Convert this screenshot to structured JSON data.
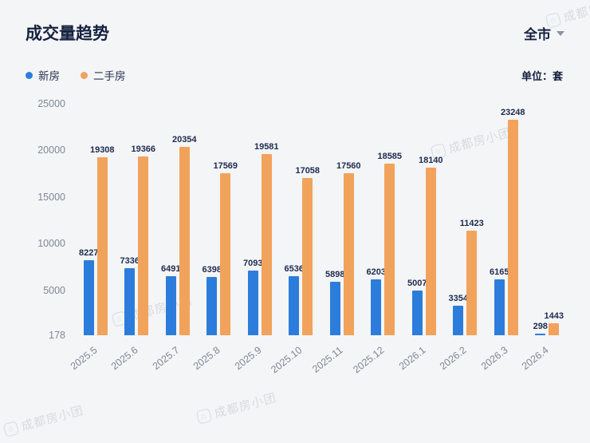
{
  "header": {
    "title": "成交量趋势",
    "scope_label": "全市",
    "unit_label": "单位：套"
  },
  "legend": [
    {
      "label": "新房",
      "color": "#2c7ddb"
    },
    {
      "label": "二手房",
      "color": "#f1a35c"
    }
  ],
  "watermark": {
    "text": "成都房小团"
  },
  "chart_data": {
    "type": "bar",
    "title": "成交量趋势",
    "unit": "套",
    "categories": [
      "2025.5",
      "2025.6",
      "2025.7",
      "2025.8",
      "2025.9",
      "2025.10",
      "2025.11",
      "2025.12",
      "2026.1",
      "2026.2",
      "2026.3",
      "2026.4"
    ],
    "series": [
      {
        "name": "新房",
        "color": "#2c7ddb",
        "values": [
          8227,
          7336,
          6491,
          6398,
          7093,
          6536,
          5898,
          6203,
          5007,
          3354,
          6165,
          298
        ]
      },
      {
        "name": "二手房",
        "color": "#f1a35c",
        "values": [
          19308,
          19366,
          20354,
          17569,
          19581,
          17058,
          17560,
          18585,
          18140,
          11423,
          23248,
          1443
        ]
      }
    ],
    "yticks": [
      178,
      5000,
      10000,
      15000,
      20000,
      25000
    ],
    "ylim": [
      178,
      25000
    ],
    "grid": false,
    "legend_position": "top-left",
    "value_labels": true
  }
}
